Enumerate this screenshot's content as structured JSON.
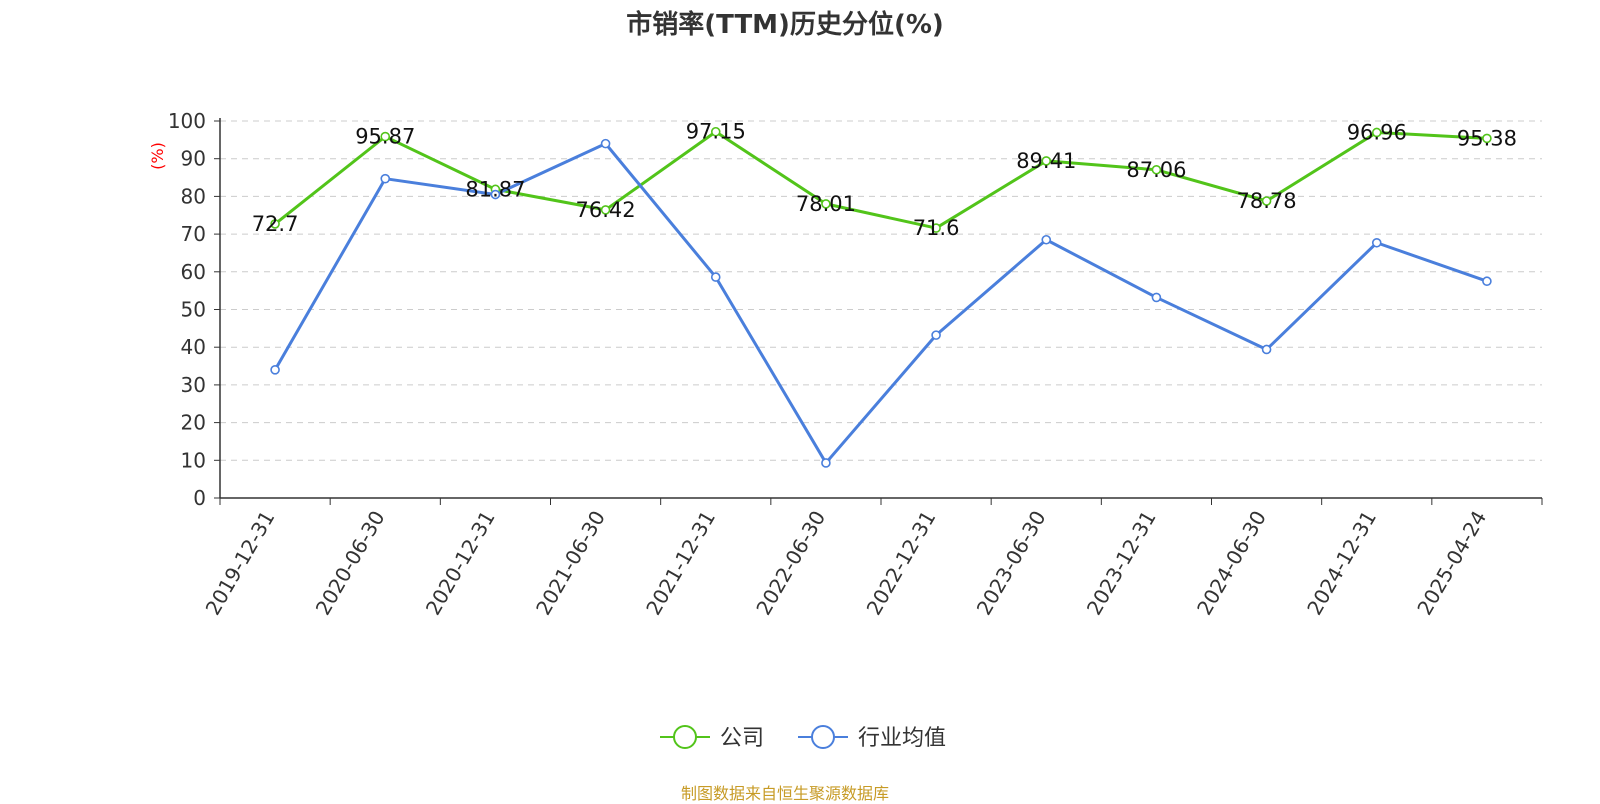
{
  "chart_data": {
    "type": "line",
    "title": "市销率(TTM)历史分位(%)",
    "ylabel": "(%)",
    "ylim": [
      0,
      100
    ],
    "yticks": [
      0,
      10,
      20,
      30,
      40,
      50,
      60,
      70,
      80,
      90,
      100
    ],
    "categories": [
      "2019-12-31",
      "2020-06-30",
      "2020-12-31",
      "2021-06-30",
      "2021-12-31",
      "2022-06-30",
      "2022-12-31",
      "2023-06-30",
      "2023-12-31",
      "2024-06-30",
      "2024-12-31",
      "2025-04-24"
    ],
    "grid": true,
    "legend_position": "bottom",
    "series": [
      {
        "name": "公司",
        "color": "#52c41a",
        "show_labels": true,
        "values": [
          72.7,
          95.87,
          81.87,
          76.42,
          97.15,
          78.01,
          71.6,
          89.41,
          87.06,
          78.78,
          96.96,
          95.38
        ]
      },
      {
        "name": "行业均值",
        "color": "#4a7fdc",
        "show_labels": false,
        "values": [
          34,
          84.7,
          80.5,
          94,
          58.6,
          9.3,
          43.2,
          68.5,
          53.2,
          39.4,
          67.7,
          57.5
        ]
      }
    ]
  },
  "source": "制图数据来自恒生聚源数据库"
}
